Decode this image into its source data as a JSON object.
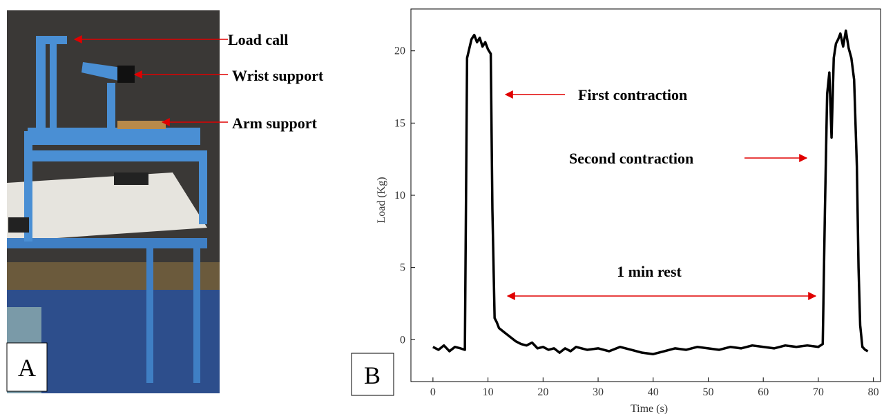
{
  "panel_a": {
    "label": "A",
    "annotations": [
      "Load call",
      "Wrist support",
      "Arm support"
    ]
  },
  "chart_data": {
    "type": "line",
    "panel_label": "B",
    "x_label": "Time (s)",
    "y_label": "Load (Kg)",
    "annotations": [
      "First contraction",
      "Second contraction",
      "1 min rest"
    ],
    "xlim": [
      -4,
      81.3
    ],
    "ylim": [
      -2.9,
      22.9
    ],
    "xticks": [
      0,
      10,
      20,
      30,
      40,
      50,
      60,
      70,
      80
    ],
    "yticks": [
      0,
      5,
      10,
      15,
      20
    ],
    "x": [
      0,
      1,
      2,
      3,
      4,
      5,
      5.8,
      6.2,
      7,
      7.5,
      8,
      8.5,
      9,
      9.5,
      10,
      10.5,
      10.8,
      11.2,
      11.6,
      12,
      13,
      14,
      15,
      16,
      17,
      18,
      19,
      20,
      21,
      22,
      23,
      24,
      25,
      26,
      28,
      30,
      32,
      34,
      36,
      38,
      40,
      42,
      44,
      46,
      48,
      50,
      52,
      54,
      56,
      58,
      60,
      62,
      64,
      66,
      68,
      70,
      70.8,
      71.2,
      71.6,
      72,
      72.4,
      72.8,
      73.2,
      73.6,
      74,
      74.5,
      75,
      75.5,
      76,
      76.5,
      77,
      77.3,
      77.6,
      78,
      78.5,
      79
    ],
    "series": [
      {
        "color": "#000000",
        "values": [
          -0.5,
          -0.7,
          -0.4,
          -0.8,
          -0.5,
          -0.6,
          -0.7,
          19.5,
          20.8,
          21.1,
          20.6,
          20.9,
          20.3,
          20.6,
          20.1,
          19.8,
          9,
          1.5,
          1.2,
          0.8,
          0.5,
          0.2,
          -0.1,
          -0.3,
          -0.4,
          -0.2,
          -0.6,
          -0.5,
          -0.7,
          -0.6,
          -0.9,
          -0.6,
          -0.8,
          -0.5,
          -0.7,
          -0.6,
          -0.8,
          -0.5,
          -0.7,
          -0.9,
          -1.0,
          -0.8,
          -0.6,
          -0.7,
          -0.5,
          -0.6,
          -0.7,
          -0.5,
          -0.6,
          -0.4,
          -0.5,
          -0.6,
          -0.4,
          -0.5,
          -0.4,
          -0.5,
          -0.3,
          9,
          17,
          18.5,
          14,
          19.5,
          20.5,
          20.8,
          21.2,
          20.3,
          21.4,
          20.2,
          19.5,
          18,
          12,
          5,
          1,
          -0.5,
          -0.7,
          -0.8
        ]
      }
    ]
  }
}
